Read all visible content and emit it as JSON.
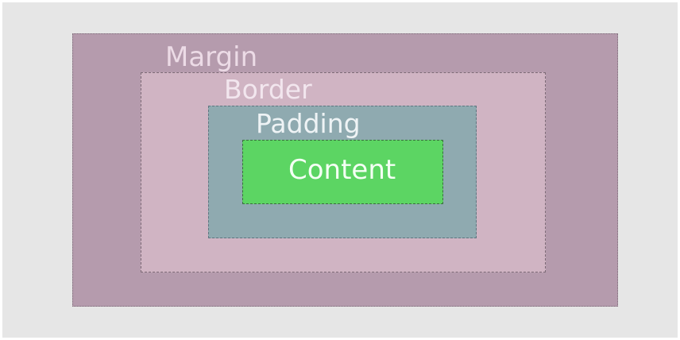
{
  "diagram": {
    "layers": [
      {
        "label": "Margin",
        "color": "#b59bad"
      },
      {
        "label": "Border",
        "color": "#d0b4c3"
      },
      {
        "label": "Padding",
        "color": "#8faab0"
      },
      {
        "label": "Content",
        "color": "#5cd563"
      }
    ]
  }
}
